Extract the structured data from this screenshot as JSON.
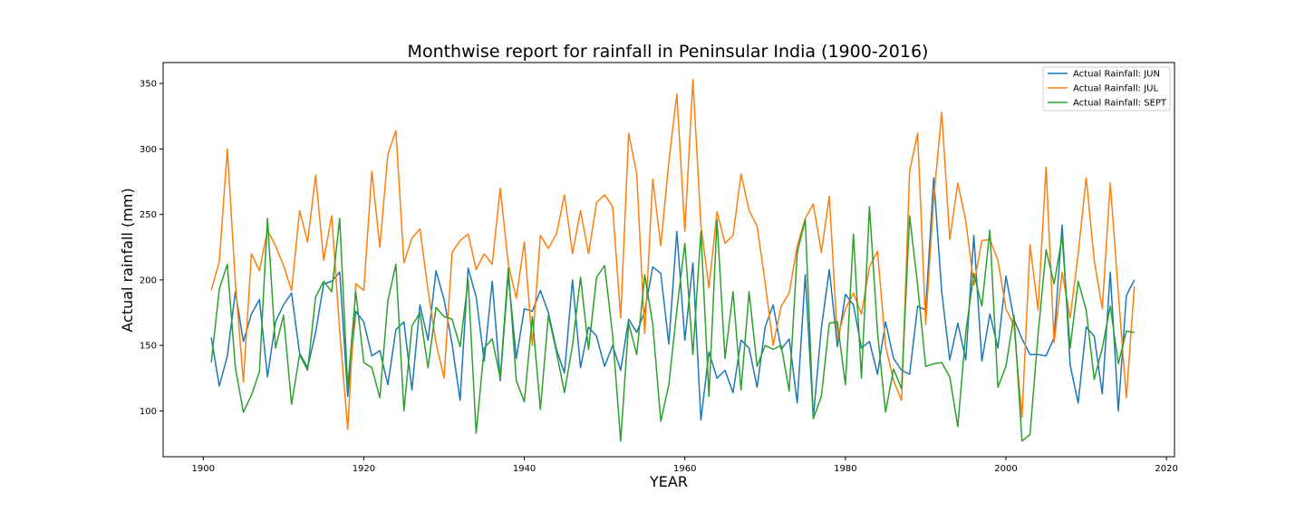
{
  "chart_data": {
    "type": "line",
    "title": "Monthwise report for rainfall in Peninsular India (1900-2016)",
    "xlabel": "YEAR",
    "ylabel": "Actual rainfall (mm)",
    "xlim": [
      1895,
      2021
    ],
    "ylim": [
      65,
      366
    ],
    "xticks": [
      1900,
      1920,
      1940,
      1960,
      1980,
      2000,
      2020
    ],
    "yticks": [
      100,
      150,
      200,
      250,
      300,
      350
    ],
    "grid": false,
    "legend_position": "top-right",
    "x": [
      1901,
      1902,
      1903,
      1904,
      1905,
      1906,
      1907,
      1908,
      1909,
      1910,
      1911,
      1912,
      1913,
      1914,
      1915,
      1916,
      1917,
      1918,
      1919,
      1920,
      1921,
      1922,
      1923,
      1924,
      1925,
      1926,
      1927,
      1928,
      1929,
      1930,
      1931,
      1932,
      1933,
      1934,
      1935,
      1936,
      1937,
      1938,
      1939,
      1940,
      1941,
      1942,
      1943,
      1944,
      1945,
      1946,
      1947,
      1948,
      1949,
      1950,
      1951,
      1952,
      1953,
      1954,
      1955,
      1956,
      1957,
      1958,
      1959,
      1960,
      1961,
      1962,
      1963,
      1964,
      1965,
      1966,
      1967,
      1968,
      1969,
      1970,
      1971,
      1972,
      1973,
      1974,
      1975,
      1976,
      1977,
      1978,
      1979,
      1980,
      1981,
      1982,
      1983,
      1984,
      1985,
      1986,
      1987,
      1988,
      1989,
      1990,
      1991,
      1992,
      1993,
      1994,
      1995,
      1996,
      1997,
      1998,
      1999,
      2000,
      2001,
      2002,
      2003,
      2004,
      2005,
      2006,
      2007,
      2008,
      2009,
      2010,
      2011,
      2012,
      2013,
      2014,
      2015,
      2016
    ],
    "series": [
      {
        "name": "Actual Rainfall: JUN",
        "color": "#1f77b4",
        "values": [
          156,
          119,
          142,
          191,
          153,
          174,
          185,
          126,
          168,
          181,
          190,
          144,
          133,
          160,
          197,
          199,
          206,
          111,
          176,
          168,
          142,
          146,
          120,
          162,
          168,
          116,
          181,
          154,
          207,
          185,
          151,
          108,
          209,
          187,
          138,
          199,
          123,
          204,
          140,
          178,
          176,
          192,
          175,
          147,
          129,
          200,
          133,
          164,
          157,
          134,
          150,
          131,
          170,
          160,
          176,
          210,
          205,
          151,
          237,
          154,
          213,
          93,
          145,
          125,
          131,
          114,
          154,
          148,
          118,
          164,
          181,
          147,
          155,
          106,
          204,
          95,
          163,
          208,
          149,
          189,
          181,
          148,
          153,
          128,
          168,
          140,
          131,
          128,
          180,
          177,
          278,
          191,
          139,
          167,
          139,
          234,
          138,
          174,
          148,
          203,
          170,
          155,
          143,
          143,
          142,
          156,
          242,
          135,
          106,
          164,
          157,
          113,
          206,
          100,
          188,
          200
        ]
      },
      {
        "name": "Actual Rainfall: JUL",
        "color": "#ff7f0e",
        "values": [
          192,
          214,
          300,
          198,
          122,
          220,
          207,
          238,
          226,
          211,
          192,
          253,
          229,
          280,
          215,
          249,
          161,
          86,
          197,
          192,
          283,
          225,
          296,
          314,
          213,
          232,
          239,
          192,
          152,
          125,
          221,
          230,
          235,
          208,
          220,
          212,
          270,
          212,
          186,
          229,
          150,
          234,
          224,
          235,
          265,
          220,
          253,
          220,
          259,
          265,
          256,
          171,
          312,
          281,
          159,
          277,
          226,
          290,
          342,
          237,
          353,
          242,
          194,
          252,
          228,
          234,
          281,
          253,
          241,
          198,
          150,
          180,
          190,
          226,
          247,
          258,
          221,
          264,
          155,
          178,
          190,
          174,
          210,
          222,
          150,
          123,
          108,
          283,
          312,
          166,
          262,
          328,
          231,
          274,
          245,
          196,
          230,
          231,
          215,
          178,
          165,
          95,
          227,
          177,
          286,
          152,
          206,
          171,
          220,
          278,
          215,
          178,
          274,
          190,
          110,
          195
        ]
      },
      {
        "name": "Actual Rainfall: SEPT",
        "color": "#2ca02c",
        "values": [
          137,
          193,
          212,
          133,
          99,
          112,
          130,
          247,
          148,
          173,
          105,
          143,
          131,
          187,
          199,
          191,
          247,
          118,
          191,
          137,
          133,
          110,
          184,
          212,
          100,
          165,
          175,
          133,
          179,
          172,
          170,
          149,
          200,
          83,
          148,
          155,
          125,
          209,
          123,
          107,
          172,
          101,
          173,
          145,
          114,
          150,
          202,
          147,
          202,
          211,
          158,
          77,
          167,
          143,
          204,
          166,
          92,
          120,
          177,
          228,
          143,
          237,
          111,
          246,
          140,
          191,
          116,
          191,
          134,
          150,
          147,
          150,
          115,
          221,
          246,
          94,
          111,
          167,
          168,
          120,
          235,
          125,
          256,
          160,
          99,
          132,
          117,
          249,
          196,
          134,
          136,
          137,
          126,
          88,
          160,
          205,
          180,
          238,
          118,
          134,
          173,
          77,
          82,
          158,
          223,
          197,
          233,
          148,
          199,
          177,
          124,
          148,
          180,
          136,
          161,
          160
        ]
      }
    ]
  }
}
